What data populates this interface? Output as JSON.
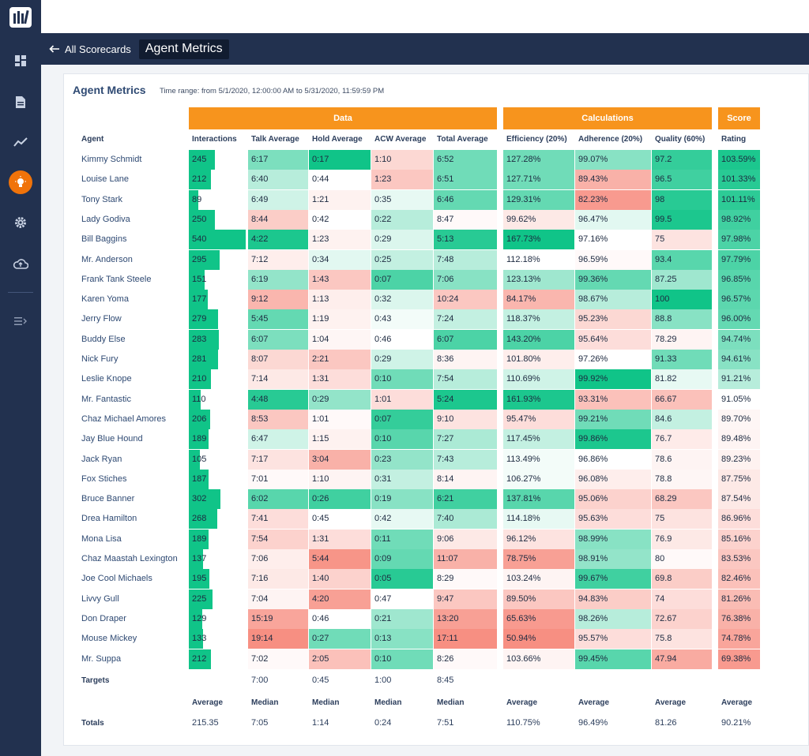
{
  "header": {
    "back_label": "All Scorecards",
    "title": "Agent Metrics"
  },
  "panel": {
    "title": "Agent Metrics",
    "time_range": "Time range: from 5/1/2020, 12:00:00 AM to 5/31/2020, 11:59:59 PM"
  },
  "groups": {
    "data": "Data",
    "calculations": "Calculations",
    "score": "Score"
  },
  "columns": {
    "agent": "Agent",
    "interactions": "Interactions",
    "talk": "Talk Average",
    "hold": "Hold Average",
    "acw": "ACW Average",
    "total": "Total Average",
    "efficiency": "Efficiency (20%)",
    "adherence": "Adherence (20%)",
    "quality": "Quality (60%)",
    "rating": "Rating"
  },
  "colors": {
    "good": "#10c488",
    "bad": "#f78f82",
    "accent": "#f7941d",
    "nav": "#22314f"
  },
  "interactions_max": 540,
  "rows": [
    {
      "name": "Kimmy Schmidt",
      "interactions": 245,
      "talk": "6:17",
      "hold": "0:17",
      "acw": "1:10",
      "total": "6:52",
      "efficiency": "127.28%",
      "adherence": "99.07%",
      "quality": "97.2",
      "rating": "103.59%",
      "s": [
        0.55,
        1,
        -0.35,
        0.6,
        0.6,
        0.5,
        0.85,
        0.95
      ]
    },
    {
      "name": "Louise Lane",
      "interactions": 212,
      "talk": "6:40",
      "hold": "0:44",
      "acw": "1:23",
      "total": "6:51",
      "efficiency": "127.71%",
      "adherence": "89.43%",
      "quality": "96.5",
      "rating": "101.33%",
      "s": [
        0.3,
        0,
        -0.5,
        0.6,
        0.6,
        -0.7,
        0.8,
        0.9
      ]
    },
    {
      "name": "Tony Stark",
      "interactions": 89,
      "talk": "6:49",
      "hold": "1:21",
      "acw": "0:35",
      "total": "6:46",
      "efficiency": "129.31%",
      "adherence": "82.23%",
      "quality": "98",
      "rating": "101.11%",
      "s": [
        0.2,
        -0.12,
        0.1,
        0.65,
        0.65,
        -0.9,
        0.9,
        0.88
      ]
    },
    {
      "name": "Lady Godiva",
      "interactions": 250,
      "talk": "8:44",
      "hold": "0:42",
      "acw": "0:22",
      "total": "8:47",
      "efficiency": "99.62%",
      "adherence": "96.47%",
      "quality": "99.5",
      "rating": "98.92%",
      "s": [
        -0.45,
        0,
        0.3,
        -0.05,
        -0.2,
        0.12,
        0.95,
        0.8
      ]
    },
    {
      "name": "Bill Baggins",
      "interactions": 540,
      "talk": "4:22",
      "hold": "1:23",
      "acw": "0:29",
      "total": "5:13",
      "efficiency": "167.73%",
      "adherence": "97.16%",
      "quality": "75",
      "rating": "97.98%",
      "s": [
        0.95,
        -0.12,
        0.15,
        0.9,
        1,
        0,
        -0.25,
        0.75
      ]
    },
    {
      "name": "Mr. Anderson",
      "interactions": 295,
      "talk": "7:12",
      "hold": "0:34",
      "acw": "0:25",
      "total": "7:48",
      "efficiency": "112.18%",
      "adherence": "96.59%",
      "quality": "93.4",
      "rating": "97.79%",
      "s": [
        -0.15,
        0.12,
        0.25,
        0.3,
        0,
        -0.05,
        0.7,
        0.75
      ]
    },
    {
      "name": "Frank Tank Steele",
      "interactions": 151,
      "talk": "6:19",
      "hold": "1:43",
      "acw": "0:07",
      "total": "7:06",
      "efficiency": "123.13%",
      "adherence": "99.36%",
      "quality": "87.25",
      "rating": "96.85%",
      "s": [
        0.45,
        -0.5,
        0.75,
        0.5,
        0.4,
        0.65,
        0.4,
        0.7
      ]
    },
    {
      "name": "Karen Yoma",
      "interactions": 177,
      "talk": "9:12",
      "hold": "1:13",
      "acw": "0:32",
      "total": "10:24",
      "efficiency": "84.17%",
      "adherence": "98.67%",
      "quality": "100",
      "rating": "96.57%",
      "s": [
        -0.65,
        -0.15,
        0.15,
        -0.5,
        -0.65,
        0.3,
        1,
        0.68
      ]
    },
    {
      "name": "Jerry Flow",
      "interactions": 279,
      "talk": "5:45",
      "hold": "1:19",
      "acw": "0:43",
      "total": "7:24",
      "efficiency": "118.37%",
      "adherence": "95.23%",
      "quality": "88.8",
      "rating": "96.00%",
      "s": [
        0.65,
        -0.12,
        0.05,
        0.25,
        0.25,
        -0.35,
        0.5,
        0.65
      ]
    },
    {
      "name": "Buddy Else",
      "interactions": 283,
      "talk": "6:07",
      "hold": "1:04",
      "acw": "0:46",
      "total": "6:07",
      "efficiency": "143.20%",
      "adherence": "95.64%",
      "quality": "78.29",
      "rating": "94.74%",
      "s": [
        0.55,
        -0.08,
        0,
        0.75,
        0.75,
        -0.3,
        -0.1,
        0.55
      ]
    },
    {
      "name": "Nick Fury",
      "interactions": 281,
      "talk": "8:07",
      "hold": "2:21",
      "acw": "0:29",
      "total": "8:36",
      "efficiency": "101.80%",
      "adherence": "97.26%",
      "quality": "91.33",
      "rating": "94.61%",
      "s": [
        -0.35,
        -0.5,
        0.2,
        -0.1,
        -0.15,
        0,
        0.6,
        0.5
      ]
    },
    {
      "name": "Leslie Knope",
      "interactions": 210,
      "talk": "7:14",
      "hold": "1:31",
      "acw": "0:10",
      "total": "7:54",
      "efficiency": "110.69%",
      "adherence": "99.92%",
      "quality": "81.82",
      "rating": "91.21%",
      "s": [
        -0.2,
        -0.3,
        0.6,
        0.3,
        0.2,
        1,
        0.1,
        0.3
      ]
    },
    {
      "name": "Mr. Fantastic",
      "interactions": 110,
      "talk": "4:48",
      "hold": "0:29",
      "acw": "1:01",
      "total": "5:24",
      "efficiency": "161.93%",
      "adherence": "93.31%",
      "quality": "66.67",
      "rating": "91.05%",
      "s": [
        0.9,
        0.45,
        -0.3,
        0.95,
        0.95,
        -0.55,
        -0.55,
        0
      ]
    },
    {
      "name": "Chaz Michael Amores",
      "interactions": 206,
      "talk": "8:53",
      "hold": "1:01",
      "acw": "0:07",
      "total": "9:10",
      "efficiency": "95.47%",
      "adherence": "99.21%",
      "quality": "84.6",
      "rating": "89.70%",
      "s": [
        -0.5,
        -0.05,
        0.85,
        -0.25,
        -0.3,
        0.6,
        0.25,
        -0.08
      ]
    },
    {
      "name": "Jay Blue Hound",
      "interactions": 189,
      "talk": "6:47",
      "hold": "1:15",
      "acw": "0:10",
      "total": "7:27",
      "efficiency": "117.45%",
      "adherence": "99.86%",
      "quality": "76.7",
      "rating": "89.48%",
      "s": [
        0.2,
        -0.12,
        0.7,
        0.35,
        0.25,
        0.95,
        -0.18,
        -0.1
      ]
    },
    {
      "name": "Jack Ryan",
      "interactions": 105,
      "talk": "7:17",
      "hold": "3:04",
      "acw": "0:23",
      "total": "7:43",
      "efficiency": "113.49%",
      "adherence": "96.86%",
      "quality": "78.6",
      "rating": "89.23%",
      "s": [
        -0.25,
        -0.7,
        0.45,
        0.3,
        0.05,
        0,
        -0.1,
        -0.12
      ]
    },
    {
      "name": "Fox Stiches",
      "interactions": 187,
      "talk": "7:01",
      "hold": "1:10",
      "acw": "0:31",
      "total": "8:14",
      "efficiency": "106.27%",
      "adherence": "96.08%",
      "quality": "78.8",
      "rating": "87.75%",
      "s": [
        -0.05,
        -0.1,
        0.25,
        -0.1,
        0.05,
        -0.15,
        -0.08,
        -0.2
      ]
    },
    {
      "name": "Bruce Banner",
      "interactions": 302,
      "talk": "6:02",
      "hold": "0:26",
      "acw": "0:19",
      "total": "6:21",
      "efficiency": "137.81%",
      "adherence": "95.06%",
      "quality": "68.29",
      "rating": "87.54%",
      "s": [
        0.7,
        0.8,
        0.5,
        0.8,
        0.7,
        -0.4,
        -0.5,
        -0.2
      ]
    },
    {
      "name": "Drea Hamilton",
      "interactions": 268,
      "talk": "7:41",
      "hold": "0:45",
      "acw": "0:42",
      "total": "7:40",
      "efficiency": "114.18%",
      "adherence": "95.63%",
      "quality": "75",
      "rating": "86.96%",
      "s": [
        -0.3,
        0,
        0.1,
        0.35,
        0.1,
        -0.3,
        -0.25,
        -0.3
      ]
    },
    {
      "name": "Mona Lisa",
      "interactions": 189,
      "talk": "7:54",
      "hold": "1:31",
      "acw": "0:11",
      "total": "9:06",
      "efficiency": "96.12%",
      "adherence": "98.99%",
      "quality": "76.9",
      "rating": "85.16%",
      "s": [
        -0.4,
        -0.3,
        0.6,
        -0.2,
        -0.25,
        0.5,
        -0.2,
        -0.4
      ]
    },
    {
      "name": "Chaz Maastah Lexington",
      "interactions": 137,
      "talk": "7:06",
      "hold": "5:44",
      "acw": "0:09",
      "total": "11:07",
      "efficiency": "78.75%",
      "adherence": "98.91%",
      "quality": "80",
      "rating": "83.53%",
      "s": [
        -0.15,
        -0.95,
        0.65,
        -0.7,
        -0.85,
        0.45,
        -0.05,
        -0.5
      ]
    },
    {
      "name": "Joe Cool Michaels",
      "interactions": 195,
      "talk": "7:16",
      "hold": "1:40",
      "acw": "0:05",
      "total": "8:29",
      "efficiency": "103.24%",
      "adherence": "99.67%",
      "quality": "69.8",
      "rating": "82.46%",
      "s": [
        -0.2,
        -0.4,
        0.9,
        -0.05,
        -0.1,
        0.8,
        -0.45,
        -0.55
      ]
    },
    {
      "name": "Livvy Gull",
      "interactions": 225,
      "talk": "7:04",
      "hold": "4:20",
      "acw": "0:47",
      "total": "9:47",
      "efficiency": "89.50%",
      "adherence": "94.83%",
      "quality": "74",
      "rating": "81.26%",
      "s": [
        -0.1,
        -0.85,
        0,
        -0.5,
        -0.5,
        -0.45,
        -0.3,
        -0.6
      ]
    },
    {
      "name": "Don Draper",
      "interactions": 129,
      "talk": "15:19",
      "hold": "0:46",
      "acw": "0:21",
      "total": "13:20",
      "efficiency": "65.63%",
      "adherence": "98.26%",
      "quality": "72.67",
      "rating": "76.38%",
      "s": [
        -0.8,
        0,
        0.4,
        -0.85,
        -0.9,
        0.3,
        -0.4,
        -0.7
      ]
    },
    {
      "name": "Mouse Mickey",
      "interactions": 133,
      "talk": "19:14",
      "hold": "0:27",
      "acw": "0:13",
      "total": "17:11",
      "efficiency": "50.94%",
      "adherence": "95.57%",
      "quality": "75.8",
      "rating": "74.78%",
      "s": [
        -1,
        0.6,
        0.5,
        -1,
        -1,
        -0.3,
        -0.25,
        -0.8
      ]
    },
    {
      "name": "Mr. Suppa",
      "interactions": 212,
      "talk": "7:02",
      "hold": "2:05",
      "acw": "0:10",
      "total": "8:26",
      "efficiency": "103.66%",
      "adherence": "99.45%",
      "quality": "47.94",
      "rating": "69.38%",
      "s": [
        -0.05,
        -0.55,
        0.6,
        -0.05,
        -0.1,
        0.7,
        -0.75,
        -0.9
      ]
    }
  ],
  "targets": {
    "label": "Targets",
    "talk": "7:00",
    "hold": "0:45",
    "acw": "1:00",
    "total": "8:45"
  },
  "aggregates": {
    "interactions": "Average",
    "talk": "Median",
    "hold": "Median",
    "acw": "Median",
    "total": "Median",
    "efficiency": "Average",
    "adherence": "Average",
    "quality": "Average",
    "rating": "Average"
  },
  "totals": {
    "label": "Totals",
    "interactions": "215.35",
    "talk": "7:05",
    "hold": "1:14",
    "acw": "0:24",
    "total": "7:51",
    "efficiency": "110.75%",
    "adherence": "96.49%",
    "quality": "81.26",
    "rating": "90.21%"
  }
}
